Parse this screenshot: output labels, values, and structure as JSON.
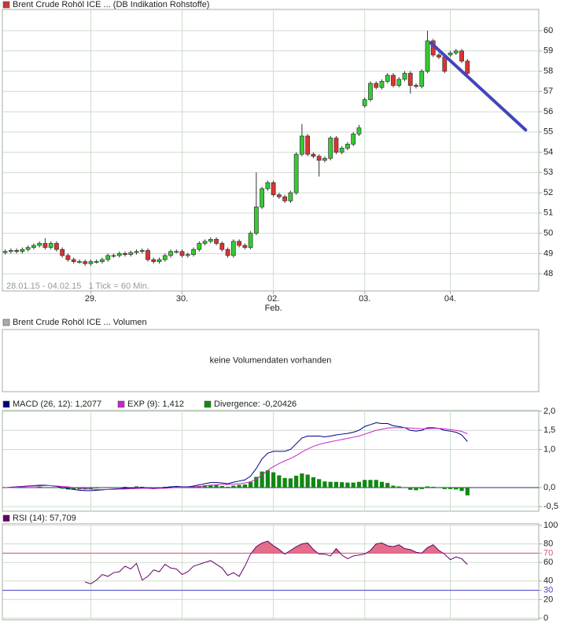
{
  "chart_data": [
    {
      "type": "candlestick",
      "title": "Brent Crude Rohöl ICE ... (DB Indikation Rohstoffe)",
      "color": "#cc3333",
      "subtitle": "28.01.15 - 04.02.15   1 Tick = 60 Min.",
      "up_color": "#33cc33",
      "down_color": "#dd3333",
      "open": [
        49.05,
        49.1,
        49.15,
        49.1,
        49.2,
        49.3,
        49.4,
        49.5,
        49.3,
        49.5,
        49.2,
        48.9,
        48.7,
        48.6,
        48.6,
        48.5,
        48.6,
        48.6,
        48.7,
        48.9,
        48.9,
        49.0,
        48.95,
        49.05,
        49.1,
        49.15,
        48.7,
        48.6,
        48.7,
        48.9,
        49.1,
        49.1,
        48.9,
        48.95,
        49.2,
        49.5,
        49.6,
        49.7,
        49.5,
        49.2,
        48.9,
        49.6,
        49.4,
        49.3,
        50.0,
        51.3,
        52.2,
        52.5,
        51.9,
        51.8,
        51.6,
        52.0,
        53.9,
        54.8,
        53.9,
        53.8,
        53.6,
        53.7,
        54.7,
        54.0,
        54.2,
        54.4,
        54.9,
        56.3,
        56.6,
        57.4,
        57.2,
        57.5,
        57.8,
        57.3,
        57.6,
        57.9,
        57.3,
        57.25,
        58.0,
        59.5,
        58.8,
        58.7,
        58.8,
        58.9,
        59.0,
        58.5
      ],
      "high": [
        49.2,
        49.25,
        49.25,
        49.3,
        49.4,
        49.5,
        49.6,
        49.75,
        49.6,
        49.6,
        49.3,
        49.0,
        48.8,
        48.7,
        48.7,
        48.7,
        48.7,
        48.8,
        49.0,
        49.0,
        49.1,
        49.1,
        49.15,
        49.2,
        49.25,
        49.25,
        48.8,
        48.8,
        49.0,
        49.2,
        49.2,
        49.2,
        49.05,
        49.3,
        49.6,
        49.7,
        49.8,
        49.8,
        49.6,
        49.3,
        49.7,
        49.7,
        49.5,
        50.1,
        53.0,
        52.3,
        52.6,
        52.6,
        52.0,
        51.9,
        52.1,
        54.0,
        55.4,
        54.9,
        54.0,
        53.9,
        53.8,
        54.8,
        54.8,
        54.3,
        54.5,
        55.0,
        55.35,
        56.7,
        57.5,
        57.5,
        57.6,
        57.9,
        57.9,
        57.7,
        58.0,
        58.0,
        57.4,
        58.1,
        60.0,
        59.6,
        58.9,
        58.8,
        59.0,
        59.1,
        59.1,
        58.6
      ],
      "low": [
        48.95,
        49.0,
        49.0,
        49.0,
        49.1,
        49.2,
        49.3,
        49.2,
        49.2,
        49.1,
        48.8,
        48.6,
        48.5,
        48.5,
        48.4,
        48.4,
        48.5,
        48.5,
        48.6,
        48.8,
        48.8,
        48.85,
        48.85,
        48.95,
        49.0,
        48.6,
        48.5,
        48.5,
        48.6,
        48.8,
        49.0,
        48.8,
        48.8,
        48.85,
        49.1,
        49.4,
        49.5,
        49.4,
        49.1,
        48.8,
        48.8,
        49.3,
        49.2,
        49.2,
        49.9,
        51.2,
        52.1,
        51.8,
        51.7,
        51.5,
        51.5,
        51.9,
        53.8,
        53.8,
        53.7,
        52.8,
        53.5,
        53.6,
        53.9,
        53.9,
        54.1,
        54.3,
        54.8,
        56.2,
        56.5,
        57.1,
        57.1,
        57.4,
        57.2,
        57.2,
        57.5,
        56.9,
        57.15,
        57.15,
        57.9,
        58.7,
        58.6,
        57.9,
        58.7,
        58.8,
        58.4,
        57.8
      ],
      "close": [
        49.1,
        49.15,
        49.1,
        49.2,
        49.3,
        49.4,
        49.5,
        49.3,
        49.5,
        49.2,
        48.9,
        48.7,
        48.6,
        48.6,
        48.5,
        48.6,
        48.6,
        48.7,
        48.9,
        48.9,
        49.0,
        48.95,
        49.05,
        49.1,
        49.15,
        48.7,
        48.6,
        48.7,
        48.9,
        49.1,
        49.1,
        48.9,
        48.95,
        49.2,
        49.5,
        49.6,
        49.7,
        49.5,
        49.2,
        48.9,
        49.6,
        49.4,
        49.3,
        50.0,
        51.3,
        52.2,
        52.5,
        51.9,
        51.8,
        51.6,
        52.0,
        53.9,
        54.8,
        53.9,
        53.8,
        53.6,
        53.7,
        54.7,
        54.0,
        54.2,
        54.4,
        54.9,
        55.2,
        56.6,
        57.4,
        57.2,
        57.5,
        57.8,
        57.3,
        57.6,
        57.9,
        57.3,
        57.25,
        58.0,
        59.5,
        58.8,
        58.7,
        58.0,
        58.9,
        59.0,
        58.5,
        57.9
      ],
      "xlim": [
        -0.5,
        93.5
      ],
      "xticks": [
        {
          "value": 15,
          "label": "29."
        },
        {
          "value": 31,
          "label": "30."
        },
        {
          "value": 47,
          "label": "02."
        },
        {
          "value": 63,
          "label": "03."
        },
        {
          "value": 78,
          "label": "04."
        }
      ],
      "month_label": "Feb.",
      "ylim": [
        47.15,
        61.05
      ],
      "yticks": [
        48,
        49,
        50,
        51,
        52,
        53,
        54,
        55,
        56,
        57,
        58,
        59,
        60
      ],
      "grid": true,
      "trendline": {
        "x": [
          74.6,
          91.2
        ],
        "y": [
          59.4,
          55.1
        ],
        "color": "#4444bb"
      }
    },
    {
      "type": "empty",
      "title": "Brent Crude Rohöl ICE ... Volumen",
      "color": "#aaaaaa",
      "note": "keine Volumendaten vorhanden"
    },
    {
      "type": "macd",
      "ylim": [
        -0.62,
        2.02
      ],
      "grid": true,
      "yticks": [
        {
          "value": 2,
          "label": "2,0"
        },
        {
          "value": 1.5,
          "label": "1,5"
        },
        {
          "value": 1,
          "label": "1,0"
        },
        {
          "value": 0,
          "label": "0,0"
        },
        {
          "value": -0.5,
          "label": "-0,5"
        }
      ],
      "series": [
        {
          "name": "MACD (26, 12): 1,2077",
          "color": "#000080",
          "kind": "line",
          "values": [
            0,
            0.01,
            0.02,
            0.03,
            0.04,
            0.05,
            0.06,
            0.06,
            0.05,
            0.03,
            0.0,
            -0.03,
            -0.05,
            -0.07,
            -0.08,
            -0.08,
            -0.07,
            -0.06,
            -0.05,
            -0.04,
            -0.03,
            -0.02,
            -0.02,
            0.0,
            0.0,
            -0.02,
            -0.03,
            -0.02,
            0.0,
            0.02,
            0.03,
            0.02,
            0.02,
            0.04,
            0.07,
            0.1,
            0.13,
            0.13,
            0.12,
            0.1,
            0.14,
            0.17,
            0.2,
            0.3,
            0.5,
            0.75,
            0.9,
            0.95,
            0.95,
            0.95,
            1.0,
            1.15,
            1.3,
            1.35,
            1.35,
            1.35,
            1.33,
            1.35,
            1.38,
            1.4,
            1.42,
            1.45,
            1.5,
            1.6,
            1.65,
            1.7,
            1.68,
            1.68,
            1.62,
            1.6,
            1.57,
            1.5,
            1.48,
            1.5,
            1.57,
            1.57,
            1.55,
            1.5,
            1.48,
            1.45,
            1.38,
            1.2077
          ]
        },
        {
          "name": "EXP (9): 1,412",
          "color": "#cc22cc",
          "kind": "line",
          "values": [
            0,
            0,
            0.01,
            0.02,
            0.03,
            0.04,
            0.04,
            0.05,
            0.05,
            0.04,
            0.03,
            0.02,
            0.0,
            -0.02,
            -0.03,
            -0.04,
            -0.05,
            -0.05,
            -0.05,
            -0.05,
            -0.04,
            -0.04,
            -0.03,
            -0.03,
            -0.02,
            -0.02,
            -0.02,
            -0.02,
            -0.02,
            -0.01,
            0.0,
            0.01,
            0.01,
            0.02,
            0.03,
            0.04,
            0.06,
            0.07,
            0.08,
            0.08,
            0.09,
            0.1,
            0.12,
            0.15,
            0.22,
            0.33,
            0.45,
            0.55,
            0.63,
            0.7,
            0.76,
            0.84,
            0.93,
            1.01,
            1.08,
            1.13,
            1.17,
            1.2,
            1.23,
            1.26,
            1.29,
            1.32,
            1.35,
            1.4,
            1.45,
            1.5,
            1.53,
            1.56,
            1.57,
            1.57,
            1.57,
            1.56,
            1.55,
            1.54,
            1.54,
            1.55,
            1.55,
            1.54,
            1.52,
            1.5,
            1.47,
            1.412
          ]
        },
        {
          "name": "Divergence: -0,20426",
          "color": "#118811",
          "kind": "bar",
          "values": [
            0,
            0.01,
            0.01,
            0.01,
            0.01,
            0.01,
            0.02,
            0.01,
            0,
            -0.01,
            -0.03,
            -0.05,
            -0.05,
            -0.05,
            -0.05,
            -0.04,
            -0.02,
            -0.01,
            0,
            0.01,
            0.01,
            0.02,
            0.01,
            0.03,
            0.02,
            0,
            -0.01,
            0,
            0.02,
            0.03,
            0.03,
            0.01,
            0.01,
            0.02,
            0.04,
            0.06,
            0.07,
            0.06,
            0.04,
            0.02,
            0.05,
            0.07,
            0.08,
            0.15,
            0.28,
            0.42,
            0.45,
            0.4,
            0.32,
            0.25,
            0.24,
            0.31,
            0.37,
            0.34,
            0.27,
            0.22,
            0.16,
            0.15,
            0.15,
            0.14,
            0.13,
            0.13,
            0.15,
            0.2,
            0.2,
            0.2,
            0.15,
            0.12,
            0.05,
            0.03,
            0,
            -0.06,
            -0.07,
            -0.04,
            0.03,
            0.02,
            0,
            -0.04,
            -0.04,
            -0.05,
            -0.09,
            -0.20426
          ]
        }
      ]
    },
    {
      "type": "line",
      "ylim": [
        0,
        100
      ],
      "yticks": [
        0,
        20,
        30,
        40,
        60,
        70,
        80,
        100
      ],
      "grid": true,
      "ref_lines": [
        {
          "value": 70,
          "color": "#dd5577",
          "fill": "above"
        },
        {
          "value": 30,
          "color": "#4444cc"
        }
      ],
      "series": [
        {
          "name": "RSI (14): 57,709",
          "color": "#660066",
          "values": [
            null,
            null,
            null,
            null,
            null,
            null,
            null,
            null,
            null,
            null,
            null,
            null,
            null,
            null,
            39,
            37,
            41,
            47,
            45,
            49,
            50,
            56,
            53,
            59,
            41,
            45,
            52,
            50,
            58,
            54,
            53,
            47,
            50,
            56,
            58,
            60,
            62,
            58,
            54,
            46,
            49,
            45,
            56,
            69,
            77,
            81,
            83,
            78,
            74,
            69,
            73,
            77,
            80,
            81,
            74,
            69,
            69,
            67,
            75,
            68,
            64,
            67,
            68,
            69,
            73,
            80,
            81,
            78,
            77,
            79,
            75,
            74,
            71,
            70,
            76,
            79,
            73,
            69,
            63,
            66,
            64,
            57.709
          ]
        }
      ]
    }
  ]
}
